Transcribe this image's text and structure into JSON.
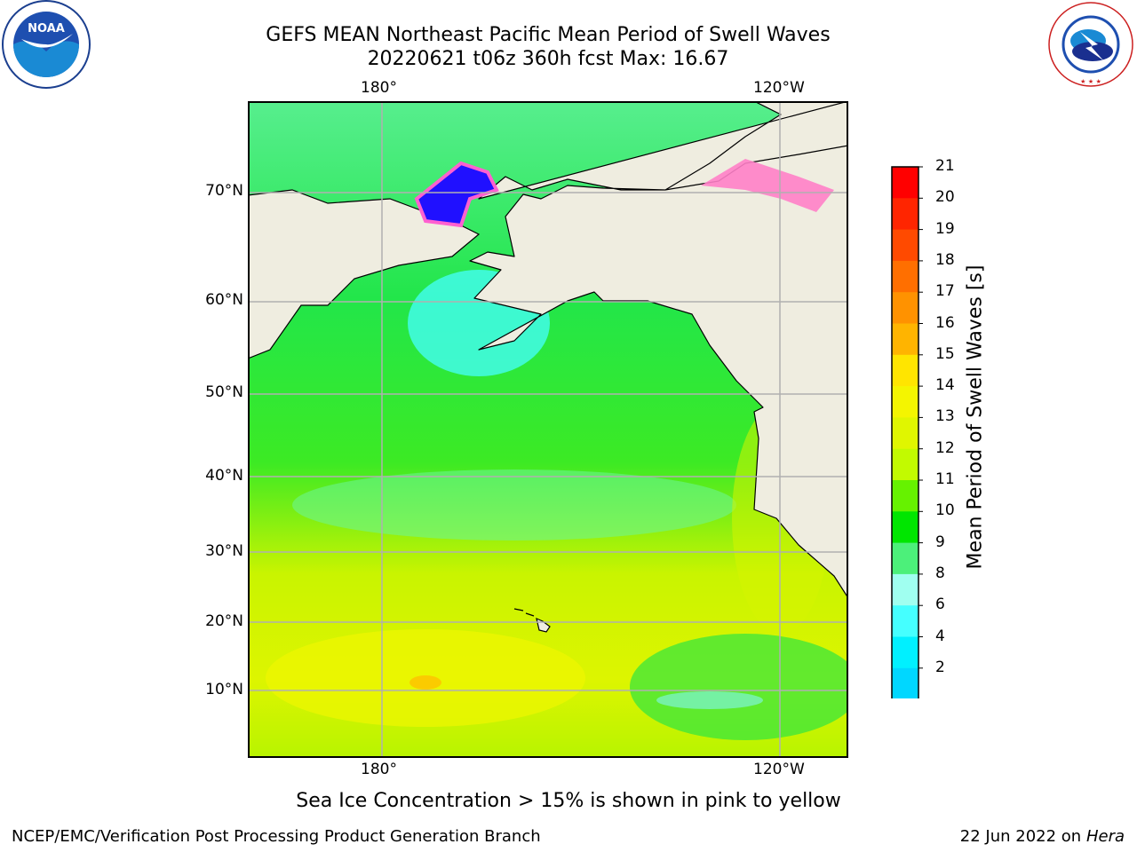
{
  "header": {
    "title_line1": "GEFS MEAN Northeast Pacific Mean Period of Swell Waves",
    "title_line2": "20220621 t06z 360h fcst   Max: 16.67"
  },
  "map": {
    "lon_top": [
      "180°",
      "120°W"
    ],
    "lon_bottom": [
      "180°",
      "120°W"
    ],
    "lat_labels": [
      "70°N",
      "60°N",
      "50°N",
      "40°N",
      "30°N",
      "20°N",
      "10°N"
    ],
    "colors": {
      "land": "#efede0",
      "grid": "#b0b0b0",
      "coast": "#000000"
    }
  },
  "colorbar": {
    "label": "Mean Period of Swell Waves [s]",
    "ticks": [
      "21",
      "20",
      "19",
      "18",
      "17",
      "16",
      "15",
      "14",
      "13",
      "12",
      "11",
      "10",
      "9",
      "8",
      "6",
      "4",
      "2"
    ],
    "colors": [
      "#ff0000",
      "#ff2500",
      "#ff4a00",
      "#ff6f00",
      "#ff9200",
      "#ffb400",
      "#ffe500",
      "#f4f500",
      "#e0f600",
      "#c2fa00",
      "#66f200",
      "#00e600",
      "#4cf07a",
      "#a0fff0",
      "#45ffff",
      "#00f0ff",
      "#00d7ff",
      "#0078ff"
    ],
    "extend_color": "#0000ff"
  },
  "logos": {
    "noaa": {
      "icon": "noaa-logo",
      "text": "NOAA"
    },
    "nws": {
      "icon": "nws-logo",
      "text": "NATIONAL WEATHER SERVICE"
    }
  },
  "footer": {
    "note": "Sea Ice Concentration > 15% is shown in pink to yellow",
    "credit": "NCEP/EMC/Verification Post Processing Product Generation Branch",
    "date": "22 Jun 2022 on",
    "host": "Hera"
  }
}
